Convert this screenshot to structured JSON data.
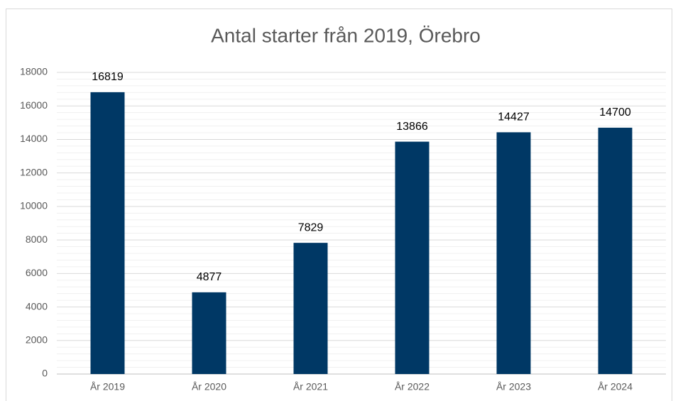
{
  "chart_data": {
    "type": "bar",
    "title": "Antal starter från 2019, Örebro",
    "categories": [
      "År 2019",
      "År 2020",
      "År 2021",
      "År 2022",
      "År 2023",
      "År 2024"
    ],
    "values": [
      16819,
      4877,
      7829,
      13866,
      14427,
      14700
    ],
    "color": "#003865",
    "ylim": [
      0,
      18000
    ],
    "yticks": [
      0,
      2000,
      4000,
      6000,
      8000,
      10000,
      12000,
      14000,
      16000,
      18000
    ],
    "grid": true
  }
}
